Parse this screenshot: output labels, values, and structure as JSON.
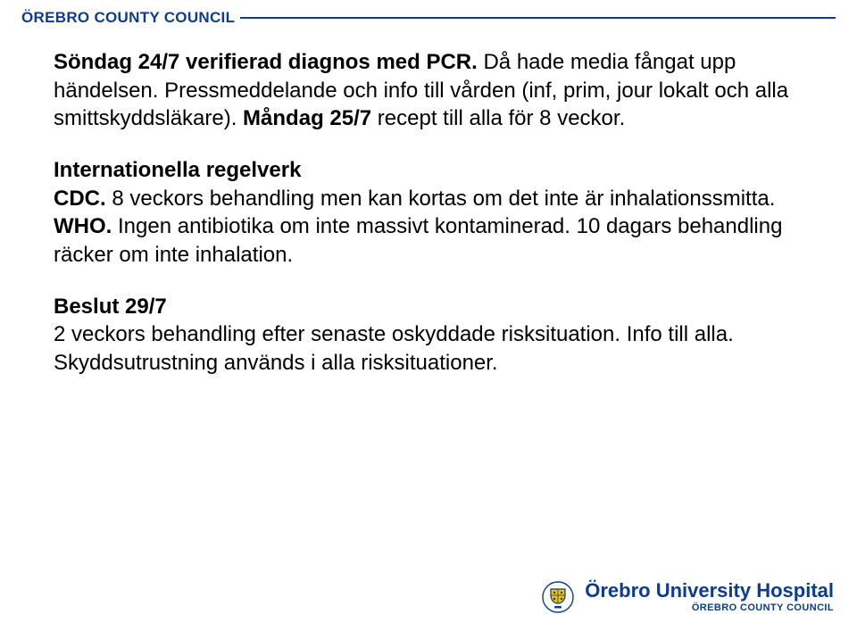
{
  "header": {
    "title": "ÖREBRO COUNTY COUNCIL",
    "title_color": "#0b3c8f",
    "line_color": "#0b3c8f"
  },
  "body": {
    "font_size": 24,
    "text_color": "#000000",
    "paragraphs": [
      {
        "runs": [
          {
            "text": "Söndag 24/7 verifierad diagnos med PCR.",
            "bold": true
          },
          {
            "text": " Då hade media fångat upp händelsen. Pressmeddelande och info till vården (inf, prim, jour lokalt och alla smittskyddsläkare).",
            "bold": false
          },
          {
            "text": " Måndag 25/7",
            "bold": true
          },
          {
            "text": " recept till alla för 8 veckor.",
            "bold": false
          }
        ]
      },
      {
        "runs": [
          {
            "text": "Internationella regelverk",
            "bold": true
          },
          {
            "text": "\n",
            "bold": false
          },
          {
            "text": "CDC.",
            "bold": true
          },
          {
            "text": " 8 veckors behandling men kan kortas om det inte är inhalationssmitta.",
            "bold": false
          },
          {
            "text": "\n",
            "bold": false
          },
          {
            "text": "WHO.",
            "bold": true
          },
          {
            "text": " Ingen antibiotika om inte massivt kontaminerad. 10 dagars behandling räcker om inte inhalation.",
            "bold": false
          }
        ]
      },
      {
        "runs": [
          {
            "text": "Beslut 29/7",
            "bold": true
          },
          {
            "text": "\n2 veckors behandling efter senaste oskyddade risksituation. Info till alla. Skyddsutrustning används i alla risksituationer.",
            "bold": false
          }
        ]
      }
    ]
  },
  "logo": {
    "main": "Örebro University Hospital",
    "sub": "ÖREBRO COUNTY COUNCIL",
    "color": "#0b3c8f"
  }
}
